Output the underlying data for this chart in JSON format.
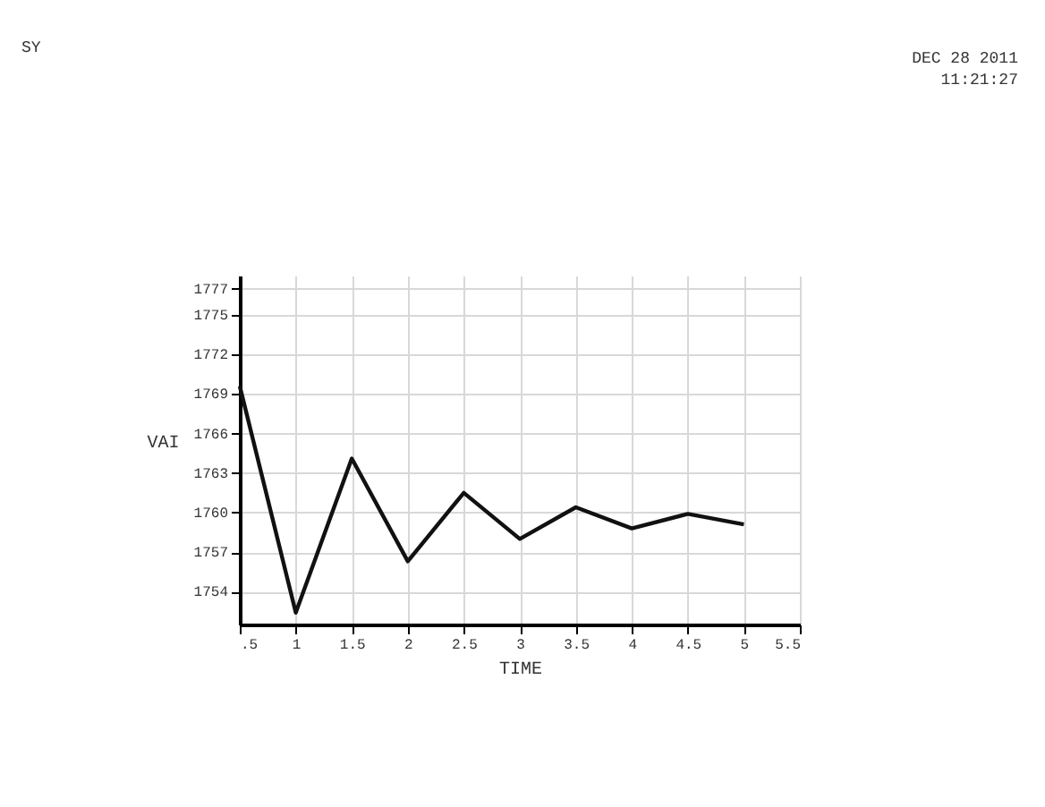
{
  "chart_data": {
    "type": "line",
    "x": [
      0.5,
      1,
      1.5,
      2,
      2.5,
      3,
      3.5,
      4,
      4.5,
      5
    ],
    "series": [
      {
        "color": "#111111",
        "values": [
          1769.6,
          1752.4,
          1764.1,
          1756.3,
          1761.5,
          1758.0,
          1760.4,
          1758.8,
          1759.9,
          1759.1
        ]
      }
    ],
    "xlabel": "TIME",
    "ylabel": "VAI",
    "xlim": [
      0.5,
      5.5
    ],
    "xticks": [
      {
        "value": 0.5,
        "label": ".5"
      },
      1,
      1.5,
      2,
      2.5,
      3,
      3.5,
      4,
      4.5,
      5,
      5.5
    ],
    "ylim": [
      1751.5,
      1778
    ],
    "yticks": [
      1754,
      1757,
      1760,
      1763,
      1766,
      1769,
      1772,
      1775,
      1777
    ],
    "grid": true,
    "marker": "none",
    "line_style": "solid",
    "annotations": [
      "SY",
      "DEC 28 2011",
      "11:21:27"
    ]
  }
}
